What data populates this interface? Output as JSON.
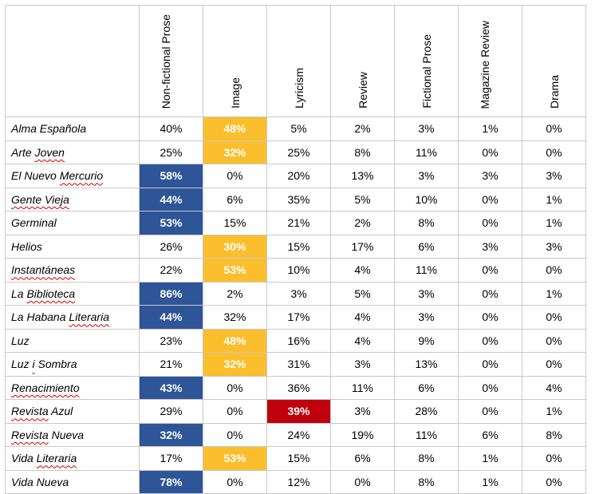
{
  "headers": [
    "Non-fictional Prose",
    "Image",
    "Lyricism",
    "Review",
    "Fictional Prose",
    "Magazine Review",
    "Drama"
  ],
  "header_lines": [
    [
      "Non-fictional",
      "Prose"
    ],
    [
      "Image"
    ],
    [
      "Lyricism"
    ],
    [
      "Review"
    ],
    [
      "Fictional Prose"
    ],
    [
      "Magazine",
      "Review"
    ],
    [
      "Drama"
    ]
  ],
  "highlight_colors": {
    "blue": "#2e5597",
    "yellow": "#fbbe2d",
    "red": "#c0000c"
  },
  "rows": [
    {
      "name": "Alma Española",
      "name_parts": [
        [
          "Alma Española",
          false
        ]
      ],
      "values": [
        "40%",
        "48%",
        "5%",
        "2%",
        "3%",
        "1%",
        "0%"
      ],
      "hl": [
        null,
        "yellow",
        null,
        null,
        null,
        null,
        null
      ]
    },
    {
      "name": "Arte Joven",
      "name_parts": [
        [
          "Arte ",
          false
        ],
        [
          "Joven",
          true
        ]
      ],
      "values": [
        "25%",
        "32%",
        "25%",
        "8%",
        "11%",
        "0%",
        "0%"
      ],
      "hl": [
        null,
        "yellow",
        null,
        null,
        null,
        null,
        null
      ]
    },
    {
      "name": "El Nuevo Mercurio",
      "name_parts": [
        [
          "El Nuevo ",
          false
        ],
        [
          "Mercurio",
          true
        ]
      ],
      "values": [
        "58%",
        "0%",
        "20%",
        "13%",
        "3%",
        "3%",
        "3%"
      ],
      "hl": [
        "blue",
        null,
        null,
        null,
        null,
        null,
        null
      ]
    },
    {
      "name": "Gente Vieja",
      "name_parts": [
        [
          "Gente Vieja",
          true
        ]
      ],
      "values": [
        "44%",
        "6%",
        "35%",
        "5%",
        "10%",
        "0%",
        "1%"
      ],
      "hl": [
        "blue",
        null,
        null,
        null,
        null,
        null,
        null
      ]
    },
    {
      "name": "Germinal",
      "name_parts": [
        [
          "Germinal",
          false
        ]
      ],
      "values": [
        "53%",
        "15%",
        "21%",
        "2%",
        "8%",
        "0%",
        "1%"
      ],
      "hl": [
        "blue",
        null,
        null,
        null,
        null,
        null,
        null
      ]
    },
    {
      "name": "Helios",
      "name_parts": [
        [
          "Helios",
          false
        ]
      ],
      "values": [
        "26%",
        "30%",
        "15%",
        "17%",
        "6%",
        "3%",
        "3%"
      ],
      "hl": [
        null,
        "yellow",
        null,
        null,
        null,
        null,
        null
      ]
    },
    {
      "name": "Instantáneas",
      "name_parts": [
        [
          "Instantáneas",
          true
        ]
      ],
      "values": [
        "22%",
        "53%",
        "10%",
        "4%",
        "11%",
        "0%",
        "0%"
      ],
      "hl": [
        null,
        "yellow",
        null,
        null,
        null,
        null,
        null
      ]
    },
    {
      "name": "La Biblioteca",
      "name_parts": [
        [
          "La ",
          false
        ],
        [
          "Biblioteca",
          true
        ]
      ],
      "values": [
        "86%",
        "2%",
        "3%",
        "5%",
        "3%",
        "0%",
        "1%"
      ],
      "hl": [
        "blue",
        null,
        null,
        null,
        null,
        null,
        null
      ]
    },
    {
      "name": "La Habana Literaria",
      "name_parts": [
        [
          "La Habana ",
          false
        ],
        [
          "Literaria",
          true
        ]
      ],
      "values": [
        "44%",
        "32%",
        "17%",
        "4%",
        "3%",
        "0%",
        "0%"
      ],
      "hl": [
        "blue",
        null,
        null,
        null,
        null,
        null,
        null
      ]
    },
    {
      "name": "Luz",
      "name_parts": [
        [
          "Luz",
          false
        ]
      ],
      "values": [
        "23%",
        "48%",
        "16%",
        "4%",
        "9%",
        "0%",
        "0%"
      ],
      "hl": [
        null,
        "yellow",
        null,
        null,
        null,
        null,
        null
      ]
    },
    {
      "name": "Luz i Sombra",
      "name_parts": [
        [
          "Luz ",
          false
        ],
        [
          "i",
          true
        ],
        [
          " Sombra",
          false
        ]
      ],
      "values": [
        "21%",
        "32%",
        "31%",
        "3%",
        "13%",
        "0%",
        "0%"
      ],
      "hl": [
        null,
        "yellow",
        null,
        null,
        null,
        null,
        null
      ]
    },
    {
      "name": "Renacimiento",
      "name_parts": [
        [
          "Renacimiento",
          true
        ]
      ],
      "values": [
        "43%",
        "0%",
        "36%",
        "11%",
        "6%",
        "0%",
        "4%"
      ],
      "hl": [
        "blue",
        null,
        null,
        null,
        null,
        null,
        null
      ]
    },
    {
      "name": "Revista Azul",
      "name_parts": [
        [
          "Revista",
          true
        ],
        [
          " Azul",
          false
        ]
      ],
      "values": [
        "29%",
        "0%",
        "39%",
        "3%",
        "28%",
        "0%",
        "1%"
      ],
      "hl": [
        null,
        null,
        "red",
        null,
        null,
        null,
        null
      ]
    },
    {
      "name": "Revista Nueva",
      "name_parts": [
        [
          "Revista",
          true
        ],
        [
          " Nueva",
          false
        ]
      ],
      "values": [
        "32%",
        "0%",
        "24%",
        "19%",
        "11%",
        "6%",
        "8%"
      ],
      "hl": [
        "blue",
        null,
        null,
        null,
        null,
        null,
        null
      ]
    },
    {
      "name": "Vida Literaria",
      "name_parts": [
        [
          "Vida ",
          false
        ],
        [
          "Literaria",
          true
        ]
      ],
      "values": [
        "17%",
        "53%",
        "15%",
        "6%",
        "8%",
        "1%",
        "0%"
      ],
      "hl": [
        null,
        "yellow",
        null,
        null,
        null,
        null,
        null
      ]
    },
    {
      "name": "Vida Nueva",
      "name_parts": [
        [
          "Vida Nueva",
          false
        ]
      ],
      "values": [
        "78%",
        "0%",
        "12%",
        "0%",
        "8%",
        "1%",
        "0%"
      ],
      "hl": [
        "blue",
        null,
        null,
        null,
        null,
        null,
        null
      ]
    }
  ]
}
